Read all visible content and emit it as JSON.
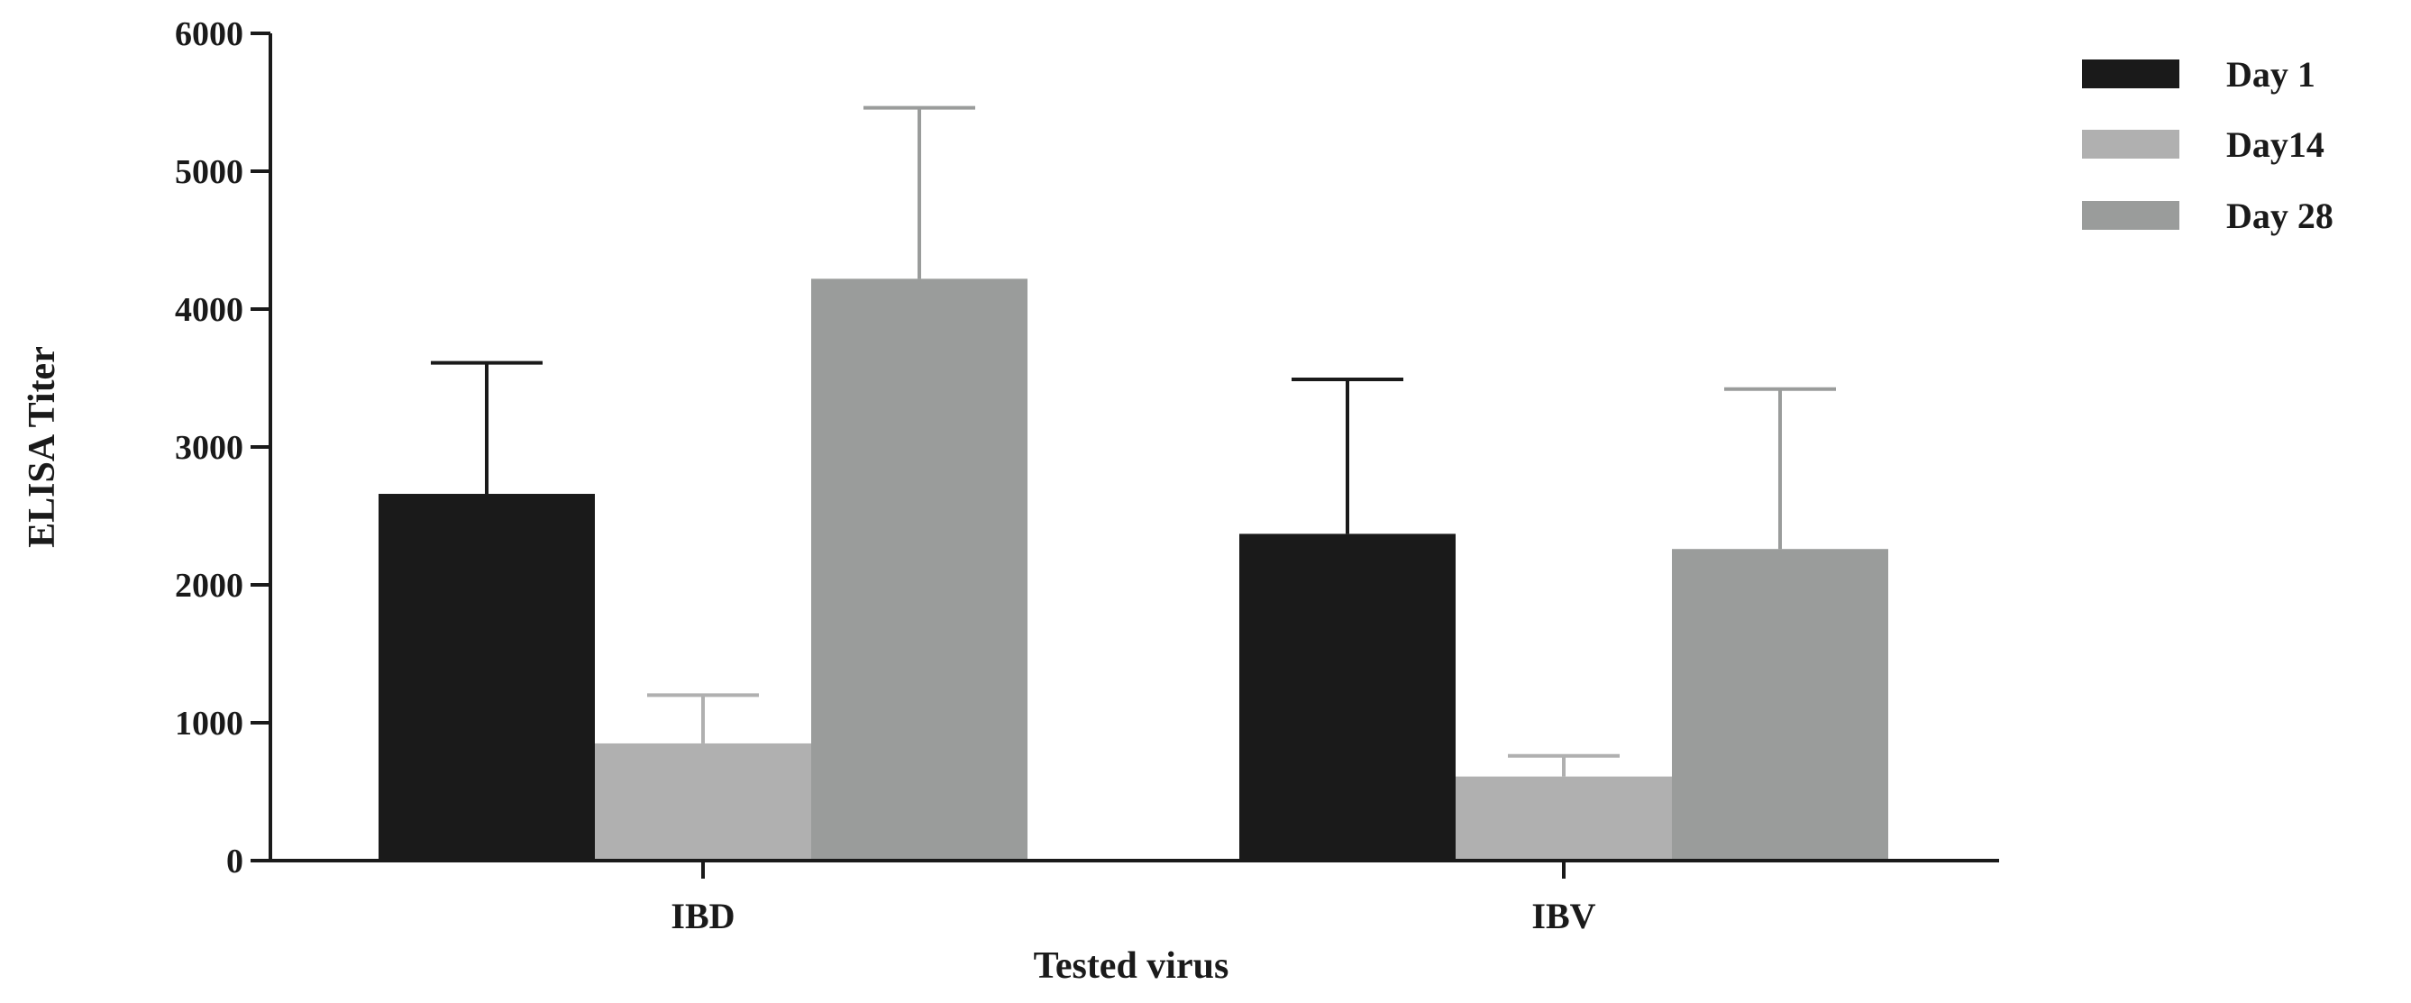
{
  "chart_data": {
    "type": "bar",
    "title": "",
    "xlabel": "Tested virus",
    "ylabel": "ELISA Titer",
    "ylim": [
      0,
      6000
    ],
    "yticks": [
      "0",
      "1000",
      "2000",
      "3000",
      "4000",
      "5000",
      "6000"
    ],
    "categories": [
      "IBD",
      "IBV"
    ],
    "series": [
      {
        "name": "Day 1",
        "color": "#1a1a1a",
        "values": [
          2660,
          2370
        ],
        "errors": [
          950,
          1120
        ]
      },
      {
        "name": "Day14",
        "color": "#b0b0b0",
        "values": [
          850,
          610
        ],
        "errors": [
          350,
          150
        ]
      },
      {
        "name": "Day 28",
        "color": "#9a9c9b",
        "values": [
          4220,
          2260
        ],
        "errors": [
          1240,
          1160
        ]
      }
    ],
    "legend_position": "top-right",
    "grid": false
  }
}
